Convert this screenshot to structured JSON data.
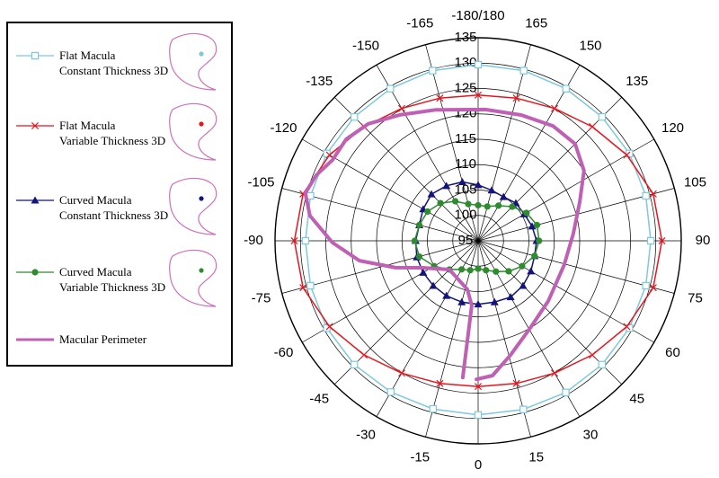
{
  "chart_data": {
    "type": "polar",
    "theta": [
      0,
      15,
      30,
      45,
      60,
      75,
      90,
      105,
      120,
      135,
      150,
      165,
      180,
      -165,
      -150,
      -135,
      -120,
      -105,
      -90,
      -75,
      -60,
      -45,
      -30,
      -15
    ],
    "thetaticks": [
      0,
      15,
      30,
      45,
      60,
      75,
      90,
      105,
      120,
      135,
      150,
      165,
      {
        "value": 180,
        "label": "-180/180"
      },
      -165,
      -150,
      -135,
      -120,
      -105,
      -90,
      -75,
      -60,
      -45,
      -30,
      -15
    ],
    "rlim": [
      95,
      135
    ],
    "rticks": [
      95,
      100,
      105,
      110,
      115,
      120,
      125,
      130,
      135
    ],
    "grid": true,
    "legend": "left",
    "series": [
      {
        "name": "Flat Macula\nConstant Thickness 3D",
        "color": "#7ec8dc",
        "marker": "square",
        "values": [
          129.3,
          129.4,
          129.5,
          129.5,
          129.4,
          129.2,
          129,
          129.2,
          129.4,
          129.5,
          129.6,
          129.7,
          129.7,
          129.7,
          129.6,
          129.5,
          129.4,
          129.2,
          129,
          129.2,
          129.4,
          129.5,
          129.4,
          129.3
        ]
      },
      {
        "name": "Flat Macula\nVariable Thickness 3D",
        "color": "#e8141e",
        "marker": "x",
        "values": [
          123.7,
          124.1,
          125.1,
          126.8,
          128.8,
          130.7,
          131.2,
          130.7,
          128.8,
          126.8,
          125.1,
          124.1,
          123.7,
          124.1,
          125.1,
          126.8,
          128.8,
          130.7,
          131.2,
          130.7,
          128.8,
          126.8,
          125.1,
          124.1
        ]
      },
      {
        "name": "Curved Macula\nConstant Thickness 3D",
        "color": "#14147a",
        "marker": "triangle",
        "values": [
          107.5,
          107.5,
          107.8,
          107.5,
          107,
          106.5,
          106.5,
          106,
          105.5,
          105.5,
          105,
          105.3,
          106,
          107,
          107.5,
          108,
          107.5,
          107,
          107.3,
          107.5,
          107.5,
          107.5,
          107.5,
          107.5
        ]
      },
      {
        "name": "Curved Macula\nVariable Thickness 3D",
        "color": "#2e8b2e",
        "marker": "circle",
        "values": [
          100.5,
          101,
          102,
          103.5,
          105,
          106.5,
          107,
          107,
          106,
          104.5,
          103,
          102,
          102,
          102.5,
          104,
          105.5,
          106.5,
          107,
          107.5,
          107,
          105,
          103,
          101.5,
          101
        ]
      },
      {
        "name": "Macular Perimeter",
        "color": "#c060b4",
        "marker": "none",
        "theta": [
          -6.4,
          -5.6,
          -12.5,
          -45,
          -64.2,
          -72,
          -80.5,
          -89.3,
          -98.5,
          -105.4,
          -112.1,
          -119.1,
          -127.6,
          -136.8,
          -148.1,
          -162.2,
          176.9,
          161.1,
          147,
          135,
          123.5,
          110.8,
          94.3,
          74.3,
          49.3,
          30.9,
          15.8,
          6.1,
          -0.7
        ],
        "values": [
          122.1,
          107.8,
          104.8,
          103,
          107.2,
          112.1,
          118.7,
          123.7,
          128.5,
          130.3,
          129.4,
          127.8,
          127.8,
          126.6,
          124.2,
          122.1,
          120.9,
          121.2,
          122,
          122,
          120,
          116.4,
          113.8,
          112.6,
          113.2,
          115,
          118.4,
          121.7,
          122.3
        ]
      }
    ]
  }
}
